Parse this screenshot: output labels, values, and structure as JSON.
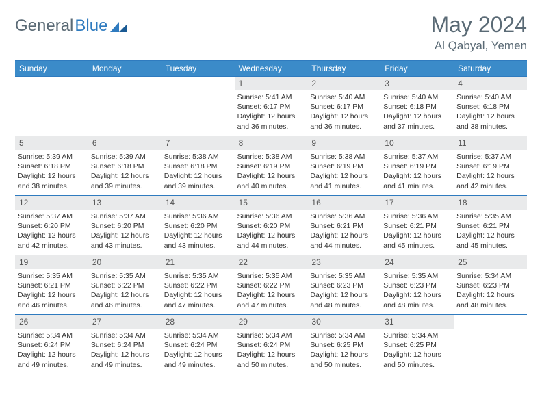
{
  "logo": {
    "text1": "General",
    "text2": "Blue"
  },
  "title": "May 2024",
  "location": "Al Qabyal, Yemen",
  "colors": {
    "header_bg": "#3b8bc9",
    "border": "#2f7bbf",
    "daynum_bg": "#e9eaeb",
    "text": "#333333",
    "muted": "#5a6a75",
    "white": "#ffffff"
  },
  "dow": [
    "Sunday",
    "Monday",
    "Tuesday",
    "Wednesday",
    "Thursday",
    "Friday",
    "Saturday"
  ],
  "weeks": [
    [
      {
        "n": "",
        "sr": "",
        "ss": "",
        "dl": ""
      },
      {
        "n": "",
        "sr": "",
        "ss": "",
        "dl": ""
      },
      {
        "n": "",
        "sr": "",
        "ss": "",
        "dl": ""
      },
      {
        "n": "1",
        "sr": "5:41 AM",
        "ss": "6:17 PM",
        "dl": "12 hours and 36 minutes."
      },
      {
        "n": "2",
        "sr": "5:40 AM",
        "ss": "6:17 PM",
        "dl": "12 hours and 36 minutes."
      },
      {
        "n": "3",
        "sr": "5:40 AM",
        "ss": "6:18 PM",
        "dl": "12 hours and 37 minutes."
      },
      {
        "n": "4",
        "sr": "5:40 AM",
        "ss": "6:18 PM",
        "dl": "12 hours and 38 minutes."
      }
    ],
    [
      {
        "n": "5",
        "sr": "5:39 AM",
        "ss": "6:18 PM",
        "dl": "12 hours and 38 minutes."
      },
      {
        "n": "6",
        "sr": "5:39 AM",
        "ss": "6:18 PM",
        "dl": "12 hours and 39 minutes."
      },
      {
        "n": "7",
        "sr": "5:38 AM",
        "ss": "6:18 PM",
        "dl": "12 hours and 39 minutes."
      },
      {
        "n": "8",
        "sr": "5:38 AM",
        "ss": "6:19 PM",
        "dl": "12 hours and 40 minutes."
      },
      {
        "n": "9",
        "sr": "5:38 AM",
        "ss": "6:19 PM",
        "dl": "12 hours and 41 minutes."
      },
      {
        "n": "10",
        "sr": "5:37 AM",
        "ss": "6:19 PM",
        "dl": "12 hours and 41 minutes."
      },
      {
        "n": "11",
        "sr": "5:37 AM",
        "ss": "6:19 PM",
        "dl": "12 hours and 42 minutes."
      }
    ],
    [
      {
        "n": "12",
        "sr": "5:37 AM",
        "ss": "6:20 PM",
        "dl": "12 hours and 42 minutes."
      },
      {
        "n": "13",
        "sr": "5:37 AM",
        "ss": "6:20 PM",
        "dl": "12 hours and 43 minutes."
      },
      {
        "n": "14",
        "sr": "5:36 AM",
        "ss": "6:20 PM",
        "dl": "12 hours and 43 minutes."
      },
      {
        "n": "15",
        "sr": "5:36 AM",
        "ss": "6:20 PM",
        "dl": "12 hours and 44 minutes."
      },
      {
        "n": "16",
        "sr": "5:36 AM",
        "ss": "6:21 PM",
        "dl": "12 hours and 44 minutes."
      },
      {
        "n": "17",
        "sr": "5:36 AM",
        "ss": "6:21 PM",
        "dl": "12 hours and 45 minutes."
      },
      {
        "n": "18",
        "sr": "5:35 AM",
        "ss": "6:21 PM",
        "dl": "12 hours and 45 minutes."
      }
    ],
    [
      {
        "n": "19",
        "sr": "5:35 AM",
        "ss": "6:21 PM",
        "dl": "12 hours and 46 minutes."
      },
      {
        "n": "20",
        "sr": "5:35 AM",
        "ss": "6:22 PM",
        "dl": "12 hours and 46 minutes."
      },
      {
        "n": "21",
        "sr": "5:35 AM",
        "ss": "6:22 PM",
        "dl": "12 hours and 47 minutes."
      },
      {
        "n": "22",
        "sr": "5:35 AM",
        "ss": "6:22 PM",
        "dl": "12 hours and 47 minutes."
      },
      {
        "n": "23",
        "sr": "5:35 AM",
        "ss": "6:23 PM",
        "dl": "12 hours and 48 minutes."
      },
      {
        "n": "24",
        "sr": "5:35 AM",
        "ss": "6:23 PM",
        "dl": "12 hours and 48 minutes."
      },
      {
        "n": "25",
        "sr": "5:34 AM",
        "ss": "6:23 PM",
        "dl": "12 hours and 48 minutes."
      }
    ],
    [
      {
        "n": "26",
        "sr": "5:34 AM",
        "ss": "6:24 PM",
        "dl": "12 hours and 49 minutes."
      },
      {
        "n": "27",
        "sr": "5:34 AM",
        "ss": "6:24 PM",
        "dl": "12 hours and 49 minutes."
      },
      {
        "n": "28",
        "sr": "5:34 AM",
        "ss": "6:24 PM",
        "dl": "12 hours and 49 minutes."
      },
      {
        "n": "29",
        "sr": "5:34 AM",
        "ss": "6:24 PM",
        "dl": "12 hours and 50 minutes."
      },
      {
        "n": "30",
        "sr": "5:34 AM",
        "ss": "6:25 PM",
        "dl": "12 hours and 50 minutes."
      },
      {
        "n": "31",
        "sr": "5:34 AM",
        "ss": "6:25 PM",
        "dl": "12 hours and 50 minutes."
      },
      {
        "n": "",
        "sr": "",
        "ss": "",
        "dl": ""
      }
    ]
  ],
  "labels": {
    "sunrise": "Sunrise:",
    "sunset": "Sunset:",
    "daylight": "Daylight:"
  }
}
